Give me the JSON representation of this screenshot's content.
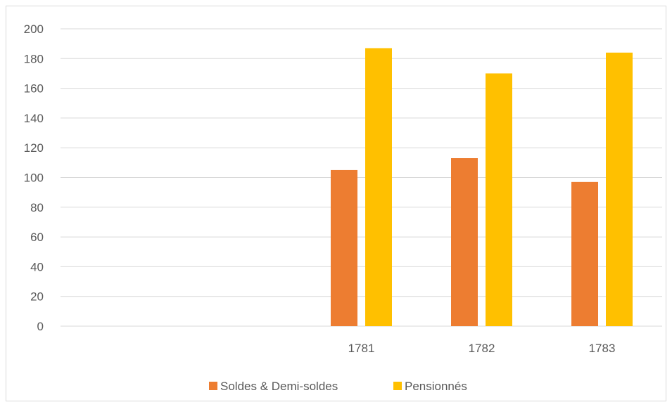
{
  "chart_data": {
    "type": "bar",
    "categories": [
      "",
      "",
      "1781",
      "1782",
      "1783"
    ],
    "series": [
      {
        "name": "Soldes & Demi-soldes",
        "color": "#ED7D31",
        "values": [
          null,
          null,
          105,
          113,
          97
        ]
      },
      {
        "name": "Pensionnés",
        "color": "#FFC000",
        "values": [
          null,
          null,
          187,
          170,
          184
        ]
      }
    ],
    "y_ticks": [
      0,
      20,
      40,
      60,
      80,
      100,
      120,
      140,
      160,
      180,
      200
    ],
    "ylim": [
      0,
      200
    ],
    "grid": true,
    "legend_position": "bottom",
    "title": "",
    "xlabel": "",
    "ylabel": ""
  }
}
